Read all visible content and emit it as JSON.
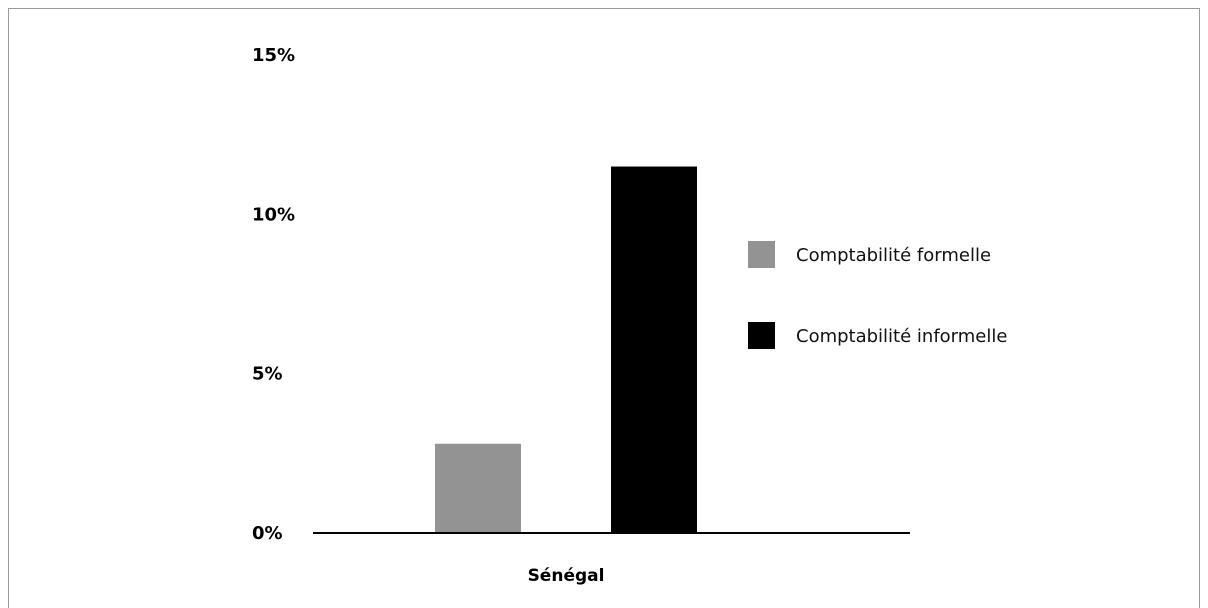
{
  "chart_data": {
    "type": "bar",
    "categories": [
      "Sénégal"
    ],
    "series": [
      {
        "name": "Comptabilité formelle",
        "values": [
          2.8
        ],
        "color": "#939393"
      },
      {
        "name": "Comptabilité informelle",
        "values": [
          11.5
        ],
        "color": "#000000"
      }
    ],
    "y_ticks": [
      "0%",
      "5%",
      "10%",
      "15%"
    ],
    "ylim": [
      0,
      15
    ],
    "legend_position": "right",
    "grid": false,
    "title": "",
    "xlabel": "",
    "ylabel": ""
  }
}
